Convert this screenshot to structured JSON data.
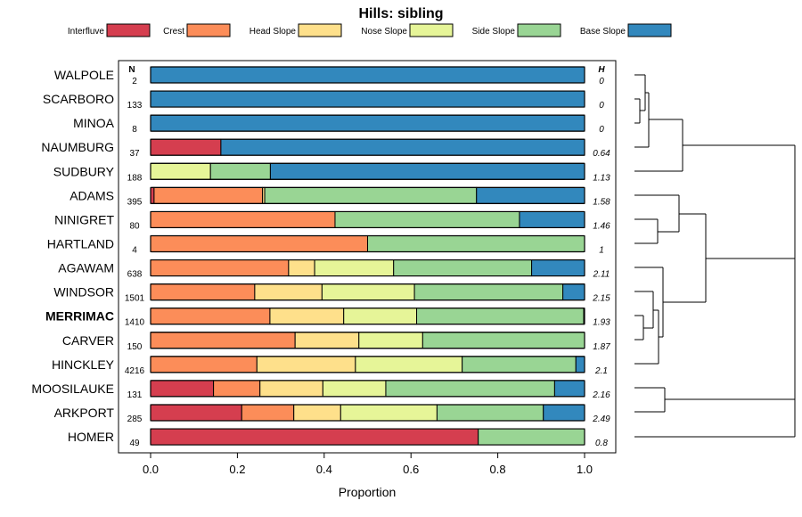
{
  "chart_data": {
    "type": "stacked-bar-horizontal",
    "title": "Hills: sibling",
    "xlabel": "Proportion",
    "xlim": [
      0,
      1
    ],
    "xticks": [
      "0.0",
      "0.2",
      "0.4",
      "0.6",
      "0.8",
      "1.0"
    ],
    "n_header": "N",
    "h_header": "H",
    "components": [
      {
        "name": "Interfluve",
        "color": "#d53e4f"
      },
      {
        "name": "Crest",
        "color": "#fc8d59"
      },
      {
        "name": "Head Slope",
        "color": "#fee08b"
      },
      {
        "name": "Nose Slope",
        "color": "#e6f598"
      },
      {
        "name": "Side Slope",
        "color": "#99d594"
      },
      {
        "name": "Base Slope",
        "color": "#3288bd"
      }
    ],
    "rows": [
      {
        "name": "WALPOLE",
        "n": "2",
        "h": "0",
        "bold": false,
        "values": [
          0,
          0,
          0,
          0,
          0,
          1
        ]
      },
      {
        "name": "SCARBORO",
        "n": "133",
        "h": "0",
        "bold": false,
        "values": [
          0,
          0,
          0,
          0,
          0,
          1
        ]
      },
      {
        "name": "MINOA",
        "n": "8",
        "h": "0",
        "bold": false,
        "values": [
          0,
          0,
          0,
          0,
          0,
          1
        ]
      },
      {
        "name": "NAUMBURG",
        "n": "37",
        "h": "0.64",
        "bold": false,
        "values": [
          0.162,
          0,
          0,
          0,
          0,
          0.838
        ]
      },
      {
        "name": "SUDBURY",
        "n": "188",
        "h": "1.13",
        "bold": false,
        "values": [
          0,
          0,
          0,
          0.138,
          0.138,
          0.724
        ]
      },
      {
        "name": "ADAMS",
        "n": "395",
        "h": "1.58",
        "bold": false,
        "values": [
          0.008,
          0.25,
          0.005,
          0,
          0.488,
          0.249
        ]
      },
      {
        "name": "NINIGRET",
        "n": "80",
        "h": "1.46",
        "bold": false,
        "values": [
          0,
          0.425,
          0,
          0,
          0.425,
          0.15
        ]
      },
      {
        "name": "HARTLAND",
        "n": "4",
        "h": "1",
        "bold": false,
        "values": [
          0,
          0.5,
          0,
          0,
          0.5,
          0
        ]
      },
      {
        "name": "AGAWAM",
        "n": "638",
        "h": "2.11",
        "bold": false,
        "values": [
          0,
          0.318,
          0.06,
          0.182,
          0.318,
          0.122
        ]
      },
      {
        "name": "WINDSOR",
        "n": "1501",
        "h": "2.15",
        "bold": false,
        "values": [
          0,
          0.24,
          0.155,
          0.213,
          0.342,
          0.05
        ]
      },
      {
        "name": "MERRIMAC",
        "n": "1410",
        "h": "1.93",
        "bold": true,
        "values": [
          0,
          0.275,
          0.17,
          0.168,
          0.385,
          0.002
        ]
      },
      {
        "name": "CARVER",
        "n": "150",
        "h": "1.87",
        "bold": false,
        "values": [
          0,
          0.333,
          0.147,
          0.147,
          0.373,
          0
        ]
      },
      {
        "name": "HINCKLEY",
        "n": "4216",
        "h": "2.1",
        "bold": false,
        "values": [
          0,
          0.245,
          0.227,
          0.246,
          0.262,
          0.02
        ]
      },
      {
        "name": "MOOSILAUKE",
        "n": "131",
        "h": "2.16",
        "bold": false,
        "values": [
          0.145,
          0.107,
          0.145,
          0.145,
          0.389,
          0.069
        ]
      },
      {
        "name": "ARKPORT",
        "n": "285",
        "h": "2.49",
        "bold": false,
        "values": [
          0.21,
          0.12,
          0.108,
          0.222,
          0.245,
          0.095
        ]
      },
      {
        "name": "HOMER",
        "n": "49",
        "h": "0.8",
        "bold": false,
        "values": [
          0.755,
          0,
          0,
          0,
          0.245,
          0
        ]
      }
    ]
  }
}
